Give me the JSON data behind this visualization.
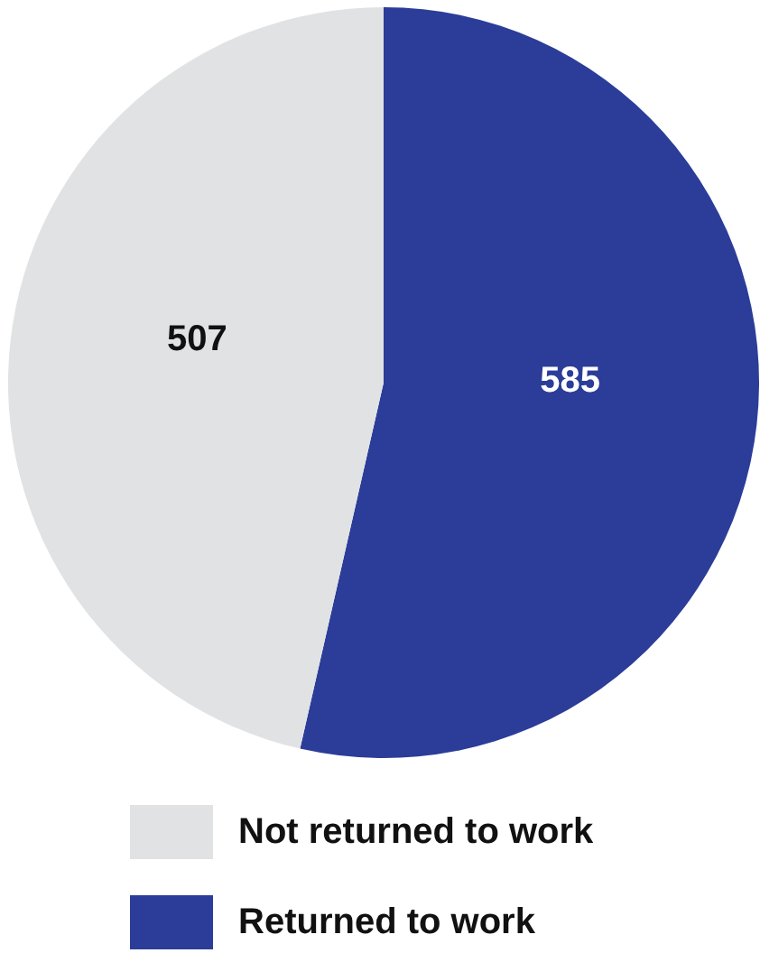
{
  "chart_data": {
    "type": "pie",
    "categories": [
      "Returned to work",
      "Not returned to work"
    ],
    "values": [
      585,
      507
    ],
    "colors": [
      "#2b3d98",
      "#e1e2e4"
    ],
    "data_labels": true,
    "legend": "bottom"
  }
}
